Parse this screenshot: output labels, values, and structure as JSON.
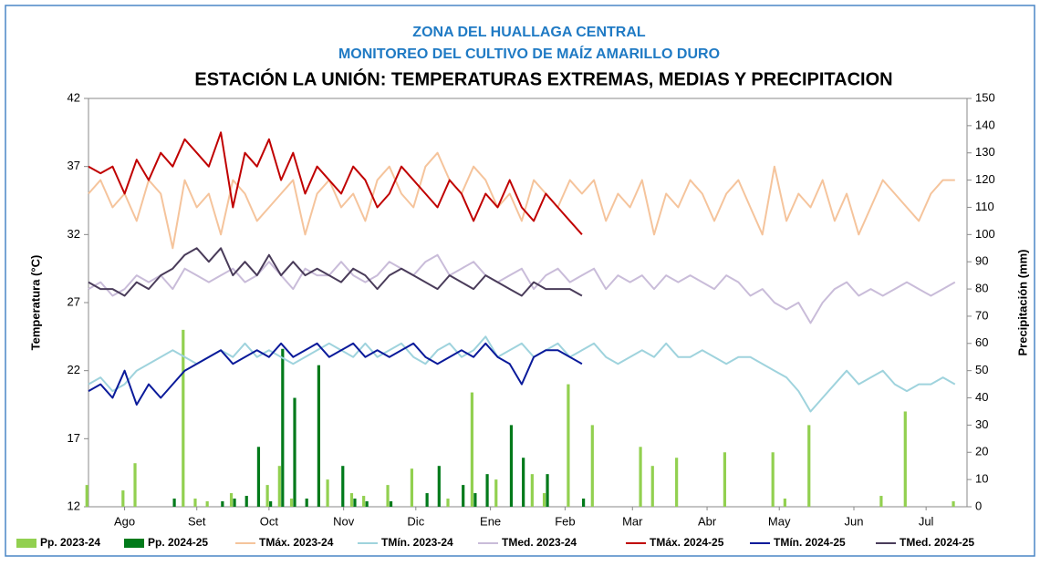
{
  "chart_data": {
    "type": "line",
    "title": "ZONA DEL HUALLAGA CENTRAL",
    "subtitle": "MONITOREO DEL CULTIVO DE MAÍZ AMARILLO DURO",
    "subtitle2": "ESTACIÓN LA UNIÓN: TEMPERATURAS EXTREMAS, MEDIAS Y PRECIPITACION",
    "ylabel": "Temperatura (°C)",
    "y2label": "Precipitación (mm)",
    "x": [
      0,
      5,
      10,
      15,
      20,
      25,
      30,
      35,
      40,
      45,
      50,
      55,
      60,
      65,
      70,
      75,
      80,
      85,
      90,
      95,
      100,
      105,
      110,
      115,
      120,
      125,
      130,
      135,
      140,
      145,
      150,
      155,
      160,
      165,
      170,
      175,
      180,
      185,
      190,
      195,
      200,
      205,
      210,
      215,
      220,
      225,
      230,
      235,
      240,
      245,
      250,
      255,
      260,
      265,
      270,
      275,
      280,
      285,
      290,
      295,
      300,
      305,
      310,
      315,
      320,
      325,
      330,
      335,
      340,
      345,
      350,
      355,
      360
    ],
    "xlim": [
      0,
      365
    ],
    "xticks": [
      {
        "value": 15,
        "label": "Ago"
      },
      {
        "value": 45,
        "label": "Set"
      },
      {
        "value": 75,
        "label": "Oct"
      },
      {
        "value": 106,
        "label": "Nov"
      },
      {
        "value": 136,
        "label": "Dic"
      },
      {
        "value": 167,
        "label": "Ene"
      },
      {
        "value": 198,
        "label": "Feb"
      },
      {
        "value": 226,
        "label": "Mar"
      },
      {
        "value": 257,
        "label": "Abr"
      },
      {
        "value": 287,
        "label": "May"
      },
      {
        "value": 318,
        "label": "Jun"
      },
      {
        "value": 348,
        "label": "Jul"
      }
    ],
    "ylim": [
      12,
      42
    ],
    "yticks": [
      12,
      17,
      22,
      27,
      32,
      37,
      42
    ],
    "y2lim": [
      0,
      150
    ],
    "y2ticks": [
      0,
      10,
      20,
      30,
      40,
      50,
      60,
      70,
      80,
      90,
      100,
      110,
      120,
      130,
      140,
      150
    ],
    "series": [
      {
        "name": "Pp. 2023-24",
        "kind": "bar",
        "axis": "y2",
        "color": "#92d050",
        "values": [
          8,
          0,
          0,
          6,
          16,
          0,
          0,
          0,
          65,
          3,
          2,
          0,
          5,
          0,
          0,
          8,
          15,
          3,
          0,
          0,
          10,
          0,
          5,
          4,
          0,
          8,
          0,
          14,
          0,
          0,
          3,
          0,
          42,
          0,
          10,
          0,
          0,
          12,
          5,
          0,
          45,
          0,
          30,
          0,
          0,
          0,
          22,
          15,
          0,
          18,
          0,
          0,
          0,
          20,
          0,
          0,
          0,
          20,
          3,
          0,
          30,
          0,
          0,
          0,
          0,
          0,
          4,
          0,
          35,
          0,
          0,
          0,
          2
        ]
      },
      {
        "name": "Pp. 2024-25",
        "kind": "bar",
        "axis": "y2",
        "color": "#007a1a",
        "values": [
          0,
          0,
          0,
          0,
          0,
          0,
          0,
          3,
          0,
          0,
          0,
          2,
          3,
          4,
          22,
          2,
          58,
          40,
          3,
          52,
          0,
          15,
          3,
          2,
          0,
          2,
          0,
          0,
          5,
          15,
          0,
          8,
          5,
          12,
          0,
          30,
          18,
          0,
          12,
          0,
          0,
          3,
          null,
          null,
          null,
          null,
          null,
          null,
          null,
          null,
          null,
          null,
          null,
          null,
          null,
          null,
          null,
          null,
          null,
          null,
          null,
          null,
          null,
          null,
          null,
          null,
          null,
          null,
          null,
          null,
          null,
          null,
          null
        ]
      },
      {
        "name": "TMáx. 2023-24",
        "color": "#f5c49c",
        "values": [
          35,
          36,
          34,
          35,
          33,
          36,
          35,
          31,
          36,
          34,
          35,
          32,
          36,
          35,
          33,
          34,
          35,
          36,
          32,
          35,
          36,
          34,
          35,
          33,
          36,
          37,
          35,
          34,
          37,
          38,
          36,
          35,
          37,
          36,
          34,
          35,
          33,
          36,
          35,
          34,
          36,
          35,
          36,
          33,
          35,
          34,
          36,
          32,
          35,
          34,
          36,
          35,
          33,
          35,
          36,
          34,
          32,
          37,
          33,
          35,
          34,
          36,
          33,
          35,
          32,
          34,
          36,
          35,
          34,
          33,
          35,
          36,
          36
        ]
      },
      {
        "name": "TMín. 2023-24",
        "color": "#9fd3dd",
        "values": [
          21,
          21.5,
          20.5,
          21,
          22,
          22.5,
          23,
          23.5,
          23,
          22.5,
          23,
          23.5,
          23,
          24,
          23,
          23.5,
          23,
          22.5,
          23,
          23.5,
          24,
          23.5,
          23,
          24,
          23,
          23.5,
          24,
          23,
          22.5,
          23.5,
          24,
          23,
          23.5,
          24.5,
          23,
          23.5,
          24,
          23,
          23.5,
          24,
          23,
          23.5,
          24,
          23,
          22.5,
          23,
          23.5,
          23,
          24,
          23,
          23,
          23.5,
          23,
          22.5,
          23,
          23,
          22.5,
          22,
          21.5,
          20.5,
          19,
          20,
          21,
          22,
          21,
          21.5,
          22,
          21,
          20.5,
          21,
          21,
          21.5,
          21
        ]
      },
      {
        "name": "TMed. 2023-24",
        "color": "#c9bcd9",
        "values": [
          28,
          28.5,
          27.5,
          28,
          29,
          28.5,
          29,
          28,
          29.5,
          29,
          28.5,
          29,
          29.5,
          28.5,
          29,
          30,
          29,
          28,
          29.5,
          29,
          29,
          30,
          29,
          28.5,
          29,
          30,
          29.5,
          29,
          30,
          30.5,
          29,
          29.5,
          30,
          29,
          28.5,
          29,
          29.5,
          28,
          29,
          29.5,
          28.5,
          29,
          29.5,
          28,
          29,
          28.5,
          29,
          28,
          29,
          28.5,
          29,
          28.5,
          28,
          29,
          28.5,
          27.5,
          28,
          27,
          26.5,
          27,
          25.5,
          27,
          28,
          28.5,
          27.5,
          28,
          27.5,
          28,
          28.5,
          28,
          27.5,
          28,
          28.5
        ]
      },
      {
        "name": "TMáx. 2024-25",
        "color": "#c00000",
        "values": [
          37,
          36.5,
          37,
          35,
          37.5,
          36,
          38,
          37,
          39,
          38,
          37,
          39.5,
          34,
          38,
          37,
          39,
          36,
          38,
          35,
          37,
          36,
          35,
          37,
          36,
          34,
          35,
          37,
          36,
          35,
          34,
          36,
          35,
          33,
          35,
          34,
          36,
          34,
          33,
          35,
          34,
          33,
          32,
          null,
          null,
          null,
          null,
          null,
          null,
          null,
          null,
          null,
          null,
          null,
          null,
          null,
          null,
          null,
          null,
          null,
          null,
          null,
          null,
          null,
          null,
          null,
          null,
          null,
          null,
          null,
          null,
          null,
          null,
          null
        ]
      },
      {
        "name": "TMín. 2024-25",
        "color": "#0a1a9a",
        "values": [
          20.5,
          21,
          20,
          22,
          19.5,
          21,
          20,
          21,
          22,
          22.5,
          23,
          23.5,
          22.5,
          23,
          23.5,
          23,
          24,
          23,
          23.5,
          24,
          23,
          23.5,
          24,
          23,
          23.5,
          23,
          23.5,
          24,
          23,
          22.5,
          23,
          23.5,
          23,
          24,
          23,
          22.5,
          21,
          23,
          23.5,
          23.5,
          23,
          22.5,
          null,
          null,
          null,
          null,
          null,
          null,
          null,
          null,
          null,
          null,
          null,
          null,
          null,
          null,
          null,
          null,
          null,
          null,
          null,
          null,
          null,
          null,
          null,
          null,
          null,
          null,
          null,
          null,
          null,
          null,
          null
        ]
      },
      {
        "name": "TMed. 2024-25",
        "color": "#4a3c5a",
        "values": [
          28.5,
          28,
          28,
          27.5,
          28.5,
          28,
          29,
          29.5,
          30.5,
          31,
          30,
          31,
          29,
          30,
          29,
          30.5,
          29,
          30,
          29,
          29.5,
          29,
          28.5,
          29.5,
          29,
          28,
          29,
          29.5,
          29,
          28.5,
          28,
          29,
          28.5,
          28,
          29,
          28.5,
          28,
          27.5,
          28.5,
          28,
          28,
          28,
          27.5,
          null,
          null,
          null,
          null,
          null,
          null,
          null,
          null,
          null,
          null,
          null,
          null,
          null,
          null,
          null,
          null,
          null,
          null,
          null,
          null,
          null,
          null,
          null,
          null,
          null,
          null,
          null,
          null,
          null,
          null,
          null
        ]
      }
    ]
  }
}
